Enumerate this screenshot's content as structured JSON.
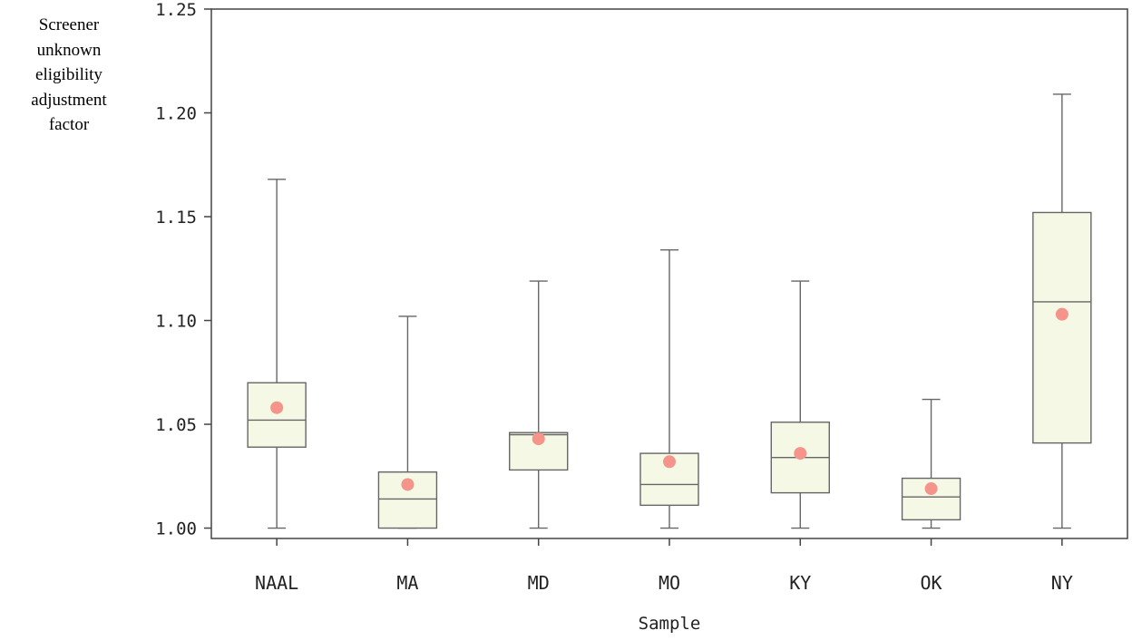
{
  "chart_data": {
    "type": "boxplot",
    "ylabel_lines": [
      "Screener",
      "unknown",
      "eligibility",
      "adjustment",
      "factor"
    ],
    "xlabel": "Sample",
    "ylim": [
      0.995,
      1.25
    ],
    "yticks": [
      "1.00",
      "1.05",
      "1.10",
      "1.15",
      "1.20",
      "1.25"
    ],
    "tick_values": [
      1.0,
      1.05,
      1.1,
      1.15,
      1.2,
      1.25
    ],
    "categories": [
      "NAAL",
      "MA",
      "MD",
      "MO",
      "KY",
      "OK",
      "NY"
    ],
    "boxes": [
      {
        "name": "NAAL",
        "min": 1.0,
        "q1": 1.039,
        "median": 1.052,
        "q3": 1.07,
        "max": 1.168,
        "mean": 1.058
      },
      {
        "name": "MA",
        "min": 1.0,
        "q1": 1.0,
        "median": 1.014,
        "q3": 1.027,
        "max": 1.102,
        "mean": 1.021
      },
      {
        "name": "MD",
        "min": 1.0,
        "q1": 1.028,
        "median": 1.045,
        "q3": 1.046,
        "max": 1.119,
        "mean": 1.043
      },
      {
        "name": "MO",
        "min": 1.0,
        "q1": 1.011,
        "median": 1.021,
        "q3": 1.036,
        "max": 1.134,
        "mean": 1.032
      },
      {
        "name": "KY",
        "min": 1.0,
        "q1": 1.017,
        "median": 1.034,
        "q3": 1.051,
        "max": 1.119,
        "mean": 1.036
      },
      {
        "name": "OK",
        "min": 1.0,
        "q1": 1.004,
        "median": 1.015,
        "q3": 1.024,
        "max": 1.062,
        "mean": 1.019
      },
      {
        "name": "NY",
        "min": 1.0,
        "q1": 1.041,
        "median": 1.109,
        "q3": 1.152,
        "max": 1.209,
        "mean": 1.103
      }
    ],
    "colors": {
      "box_fill": "#f6f8e6",
      "box_stroke": "#666666",
      "mean_marker": "#f4948a",
      "axis": "#444444"
    }
  }
}
